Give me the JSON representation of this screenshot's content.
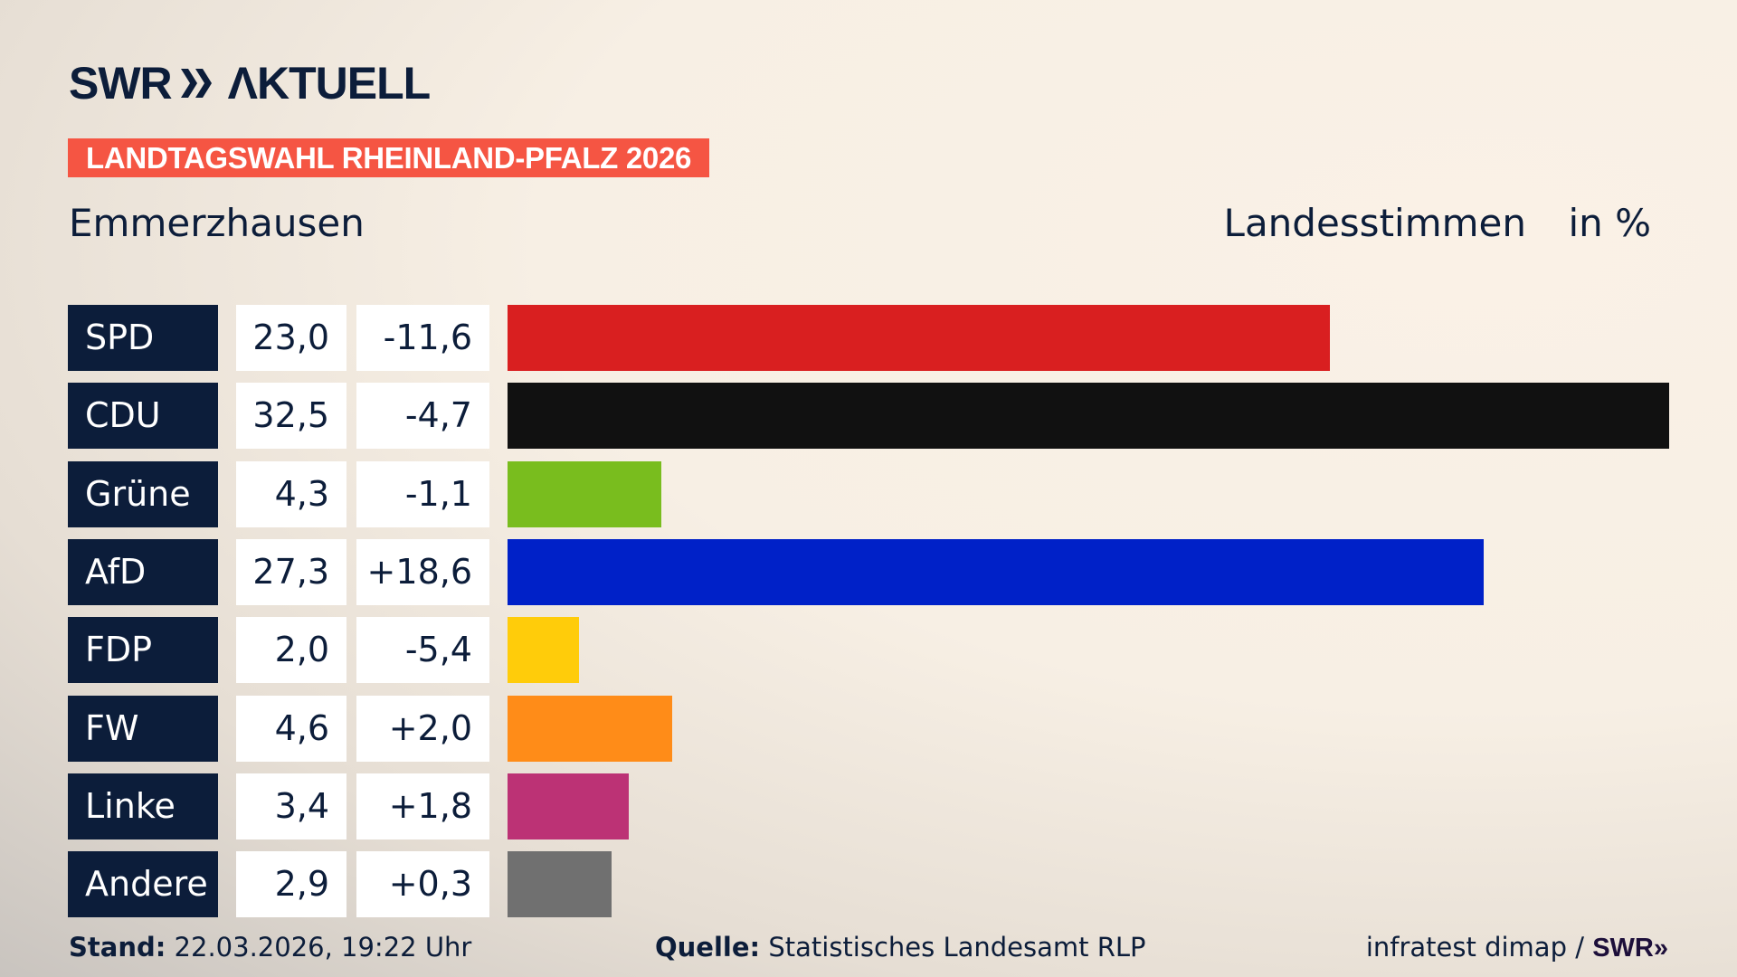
{
  "header": {
    "logo_text": "SWR AKTUELL",
    "banner": "LANDTAGSWAHL RHEINLAND-PFALZ 2026",
    "region": "Emmerzhausen",
    "measure": "Landesstimmen",
    "unit": "in %"
  },
  "chart_data": {
    "type": "bar",
    "orientation": "horizontal",
    "categories": [
      "SPD",
      "CDU",
      "Grüne",
      "AfD",
      "FDP",
      "FW",
      "Linke",
      "Andere"
    ],
    "values": [
      23.0,
      32.5,
      4.3,
      27.3,
      2.0,
      4.6,
      3.4,
      2.9
    ],
    "value_labels": [
      "23,0",
      "32,5",
      "4,3",
      "27,3",
      "2,0",
      "4,6",
      "3,4",
      "2,9"
    ],
    "changes": [
      "-11,6",
      "-4,7",
      "-1,1",
      "+18,6",
      "-5,4",
      "+2,0",
      "+1,8",
      "+0,3"
    ],
    "colors": [
      "#d91f20",
      "#111111",
      "#79bd1e",
      "#0021c8",
      "#ffcc0a",
      "#ff8c18",
      "#bc3275",
      "#707070"
    ],
    "ylabel": "in %",
    "grid": false
  },
  "footer": {
    "stand_label": "Stand:",
    "stand_value": "22.03.2026, 19:22 Uhr",
    "source_label": "Quelle:",
    "source_value": "Statistisches Landesamt RLP",
    "credit": "infratest dimap /",
    "credit_logo": "SWR"
  }
}
